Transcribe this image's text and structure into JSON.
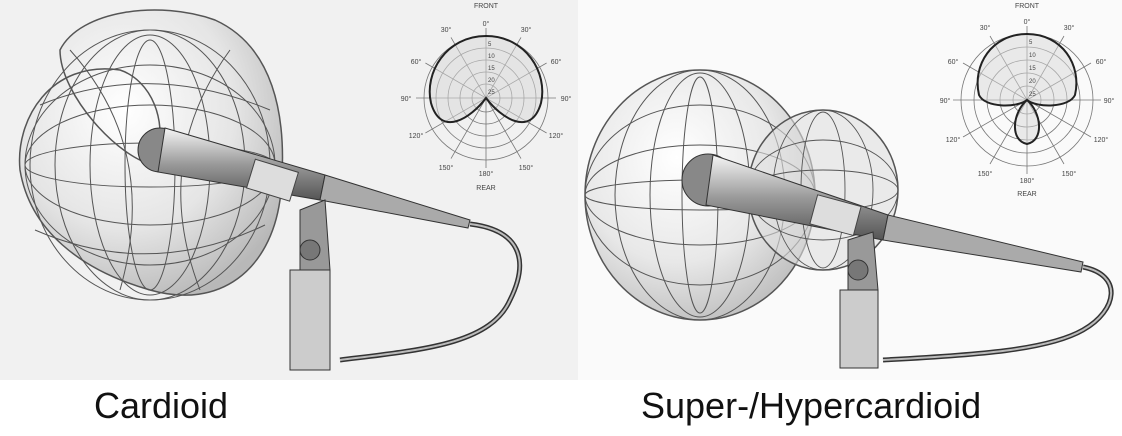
{
  "left_panel": {
    "caption": "Cardioid",
    "polar_plot": {
      "title": "FRONT",
      "bottom_label": "REAR",
      "angle_labels": [
        "0°",
        "30°",
        "60°",
        "90°",
        "120°",
        "150°",
        "180°",
        "150°",
        "120°",
        "90°",
        "60°",
        "30°"
      ],
      "ring_labels": [
        "5",
        "10",
        "15",
        "20",
        "25"
      ]
    }
  },
  "right_panel": {
    "caption": "Super-/Hypercardioid",
    "polar_plot": {
      "title": "FRONT",
      "bottom_label": "REAR",
      "angle_labels": [
        "0°",
        "30°",
        "60°",
        "90°",
        "120°",
        "150°",
        "180°",
        "150°",
        "120°",
        "90°",
        "60°",
        "30°"
      ],
      "ring_labels": [
        "5",
        "10",
        "15",
        "20",
        "25"
      ]
    }
  },
  "colors": {
    "background": "#ffffff",
    "line": "#333333",
    "sphere_fill": "#e6e6e6",
    "caption": "#111111"
  }
}
